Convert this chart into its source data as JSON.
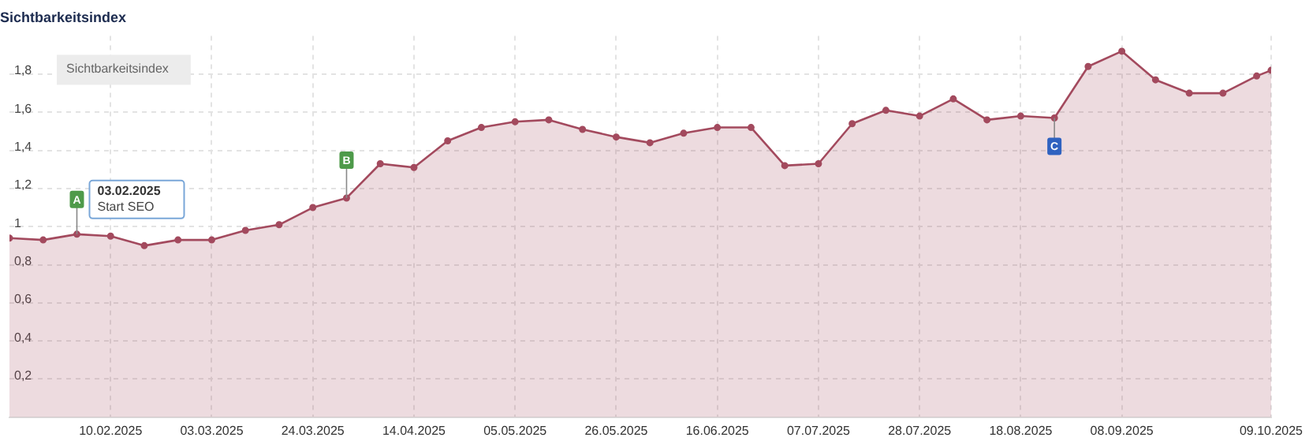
{
  "chart_data": {
    "type": "area",
    "title": "Sichtbarkeitsindex",
    "x": [
      "2025-01-20",
      "2025-01-27",
      "2025-02-03",
      "2025-02-10",
      "2025-02-17",
      "2025-02-24",
      "2025-03-03",
      "2025-03-10",
      "2025-03-17",
      "2025-03-24",
      "2025-03-31",
      "2025-04-07",
      "2025-04-14",
      "2025-04-21",
      "2025-04-28",
      "2025-05-05",
      "2025-05-12",
      "2025-05-19",
      "2025-05-26",
      "2025-06-02",
      "2025-06-09",
      "2025-06-16",
      "2025-06-23",
      "2025-06-30",
      "2025-07-07",
      "2025-07-14",
      "2025-07-21",
      "2025-07-28",
      "2025-08-04",
      "2025-08-11",
      "2025-08-18",
      "2025-08-25",
      "2025-09-01",
      "2025-09-08",
      "2025-09-15",
      "2025-09-22",
      "2025-09-29",
      "2025-10-06",
      "2025-10-09"
    ],
    "series": [
      {
        "name": "Sichtbarkeitsindex",
        "color": "#a34a5e",
        "values": [
          0.94,
          0.93,
          0.96,
          0.95,
          0.9,
          0.93,
          0.93,
          0.98,
          1.01,
          1.1,
          1.15,
          1.33,
          1.31,
          1.45,
          1.52,
          1.55,
          1.56,
          1.51,
          1.47,
          1.44,
          1.49,
          1.52,
          1.52,
          1.32,
          1.33,
          1.54,
          1.61,
          1.58,
          1.67,
          1.56,
          1.58,
          1.57,
          1.84,
          1.92,
          1.77,
          1.7,
          1.7,
          1.79,
          1.82
        ]
      }
    ],
    "xlim": [
      "2025-01-20",
      "2025-10-09"
    ],
    "xticks": [
      {
        "value": "2025-02-10",
        "label": "10.02.2025"
      },
      {
        "value": "2025-03-03",
        "label": "03.03.2025"
      },
      {
        "value": "2025-03-24",
        "label": "24.03.2025"
      },
      {
        "value": "2025-04-14",
        "label": "14.04.2025"
      },
      {
        "value": "2025-05-05",
        "label": "05.05.2025"
      },
      {
        "value": "2025-05-26",
        "label": "26.05.2025"
      },
      {
        "value": "2025-06-16",
        "label": "16.06.2025"
      },
      {
        "value": "2025-07-07",
        "label": "07.07.2025"
      },
      {
        "value": "2025-07-28",
        "label": "28.07.2025"
      },
      {
        "value": "2025-08-18",
        "label": "18.08.2025"
      },
      {
        "value": "2025-09-08",
        "label": "08.09.2025"
      },
      {
        "value": "2025-10-09",
        "label": "09.10.2025"
      }
    ],
    "ylim": [
      0,
      2
    ],
    "yticks": [
      {
        "value": 0.2,
        "label": "0,2"
      },
      {
        "value": 0.4,
        "label": "0,4"
      },
      {
        "value": 0.6,
        "label": "0,6"
      },
      {
        "value": 0.8,
        "label": "0,8"
      },
      1,
      {
        "value": 1.2,
        "label": "1,2"
      },
      {
        "value": 1.4,
        "label": "1,4"
      },
      {
        "value": 1.6,
        "label": "1,6"
      },
      {
        "value": 1.8,
        "label": "1,8"
      }
    ],
    "grid": true,
    "legend": "top left",
    "marker": "circle",
    "line_style": "solid",
    "annotations": [
      {
        "text": "A",
        "x": "2025-02-03",
        "y": 0.96
      },
      {
        "text": "B",
        "x": "2025-03-31",
        "y": 1.15
      },
      {
        "text": "C",
        "x": "2025-08-25",
        "y": 1.57
      },
      "03.02.2025",
      "Start SEO"
    ]
  }
}
